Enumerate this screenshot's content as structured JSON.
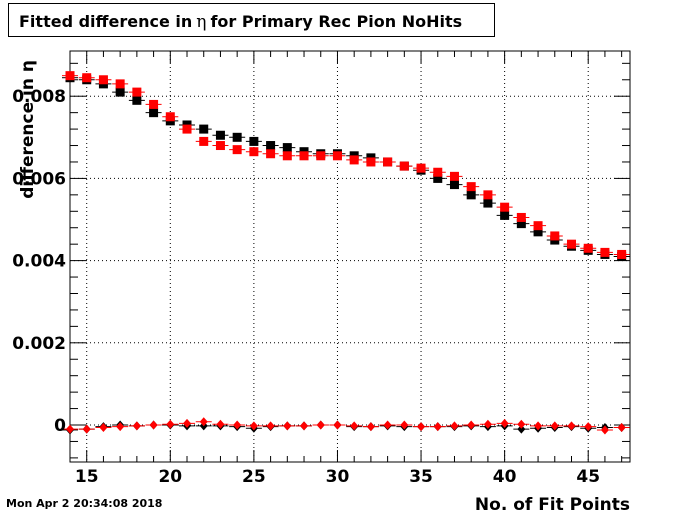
{
  "title": {
    "prefix": "Fitted difference in",
    "symbol": "η",
    "suffix": "for Primary Rec Pion NoHits"
  },
  "timestamp": "Mon Apr  2 20:34:08 2018",
  "chart_data": {
    "type": "scatter",
    "xlabel": "No. of Fit Points",
    "ylabel": "difference in η",
    "xlim": [
      14,
      47.5
    ],
    "ylim": [
      -0.0009,
      0.0091
    ],
    "x_ticks": [
      15,
      20,
      25,
      30,
      35,
      40,
      45
    ],
    "y_ticks": [
      0,
      0.002,
      0.004,
      0.006,
      0.008
    ],
    "y_tick_labels": [
      "0",
      "0.002",
      "0.004",
      "0.006",
      "0.008"
    ],
    "grid": true,
    "colors": {
      "series_black": "#000000",
      "series_red": "#ff0000",
      "axis": "#000000",
      "grid": "#000000"
    },
    "series": [
      {
        "marker": "square",
        "color": "#000000",
        "x": [
          14,
          15,
          16,
          17,
          18,
          19,
          20,
          21,
          22,
          23,
          24,
          25,
          26,
          27,
          28,
          29,
          30,
          31,
          32,
          33,
          34,
          35,
          36,
          37,
          38,
          39,
          40,
          41,
          42,
          43,
          44,
          45,
          46,
          47
        ],
        "y": [
          0.00845,
          0.0084,
          0.0083,
          0.0081,
          0.0079,
          0.0076,
          0.0074,
          0.0073,
          0.0072,
          0.00705,
          0.007,
          0.0069,
          0.0068,
          0.00675,
          0.00665,
          0.0066,
          0.0066,
          0.00655,
          0.0065,
          0.0064,
          0.0063,
          0.0062,
          0.006,
          0.00585,
          0.0056,
          0.0054,
          0.0051,
          0.0049,
          0.0047,
          0.0045,
          0.00435,
          0.00425,
          0.00415,
          0.0041
        ],
        "yerr": [
          6e-05,
          6e-05,
          6e-05,
          6e-05,
          6e-05,
          6e-05,
          6e-05,
          6e-05,
          6e-05,
          6e-05,
          6e-05,
          6e-05,
          6e-05,
          6e-05,
          6e-05,
          6e-05,
          6e-05,
          6e-05,
          6e-05,
          6e-05,
          6e-05,
          6e-05,
          6e-05,
          6e-05,
          6e-05,
          6e-05,
          6e-05,
          6e-05,
          6e-05,
          6e-05,
          6e-05,
          6e-05,
          6e-05,
          6e-05
        ]
      },
      {
        "marker": "square",
        "color": "#ff0000",
        "x": [
          14,
          15,
          16,
          17,
          18,
          19,
          20,
          21,
          22,
          23,
          24,
          25,
          26,
          27,
          28,
          29,
          30,
          31,
          32,
          33,
          34,
          35,
          36,
          37,
          38,
          39,
          40,
          41,
          42,
          43,
          44,
          45,
          46,
          47
        ],
        "y": [
          0.0085,
          0.00845,
          0.0084,
          0.0083,
          0.0081,
          0.0078,
          0.0075,
          0.0072,
          0.0069,
          0.0068,
          0.0067,
          0.00665,
          0.0066,
          0.00655,
          0.00655,
          0.00655,
          0.00655,
          0.00645,
          0.0064,
          0.0064,
          0.0063,
          0.00625,
          0.00615,
          0.00605,
          0.0058,
          0.0056,
          0.0053,
          0.00505,
          0.00485,
          0.0046,
          0.0044,
          0.0043,
          0.0042,
          0.00415
        ],
        "yerr": [
          6e-05,
          6e-05,
          6e-05,
          6e-05,
          6e-05,
          6e-05,
          6e-05,
          6e-05,
          6e-05,
          6e-05,
          6e-05,
          6e-05,
          6e-05,
          6e-05,
          6e-05,
          6e-05,
          6e-05,
          6e-05,
          6e-05,
          6e-05,
          6e-05,
          6e-05,
          6e-05,
          6e-05,
          6e-05,
          6e-05,
          6e-05,
          6e-05,
          6e-05,
          6e-05,
          6e-05,
          6e-05,
          6e-05,
          6e-05
        ]
      },
      {
        "marker": "diamond",
        "color": "#000000",
        "x": [
          14,
          15,
          16,
          17,
          18,
          19,
          20,
          21,
          22,
          23,
          24,
          25,
          26,
          27,
          28,
          29,
          30,
          31,
          32,
          33,
          34,
          35,
          36,
          37,
          38,
          39,
          40,
          41,
          42,
          43,
          44,
          45,
          46,
          47
        ],
        "y": [
          -0.00012,
          -0.0001,
          -4e-05,
          0.0,
          -2e-05,
          0.0,
          0.0,
          -2e-05,
          -2e-05,
          -2e-05,
          -4e-05,
          -8e-05,
          -4e-05,
          -2e-05,
          -2e-05,
          0.0,
          0.0,
          -4e-05,
          -4e-05,
          -2e-05,
          -4e-05,
          -4e-05,
          -4e-05,
          -4e-05,
          -2e-05,
          -4e-05,
          -2e-05,
          -0.0001,
          -8e-05,
          -6e-05,
          -4e-05,
          -8e-05,
          -6e-05,
          -6e-05
        ],
        "yerr": [
          4e-05,
          4e-05,
          4e-05,
          4e-05,
          4e-05,
          4e-05,
          4e-05,
          4e-05,
          4e-05,
          4e-05,
          4e-05,
          4e-05,
          4e-05,
          4e-05,
          4e-05,
          4e-05,
          4e-05,
          4e-05,
          4e-05,
          4e-05,
          4e-05,
          4e-05,
          4e-05,
          4e-05,
          4e-05,
          4e-05,
          4e-05,
          4e-05,
          4e-05,
          4e-05,
          4e-05,
          4e-05,
          4e-05,
          4e-05
        ]
      },
      {
        "marker": "diamond",
        "color": "#ff0000",
        "x": [
          14,
          15,
          16,
          17,
          18,
          19,
          20,
          21,
          22,
          23,
          24,
          25,
          26,
          27,
          28,
          29,
          30,
          31,
          32,
          33,
          34,
          35,
          36,
          37,
          38,
          39,
          40,
          41,
          42,
          43,
          44,
          45,
          46,
          47
        ],
        "y": [
          -0.0001,
          -0.0001,
          -6e-05,
          -4e-05,
          -2e-05,
          0.0,
          2e-05,
          4e-05,
          8e-05,
          2e-05,
          0.0,
          -2e-05,
          -2e-05,
          -2e-05,
          -2e-05,
          0.0,
          0.0,
          -2e-05,
          -4e-05,
          0.0,
          0.0,
          -4e-05,
          -4e-05,
          -2e-05,
          0.0,
          2e-05,
          4e-05,
          2e-05,
          -2e-05,
          -2e-05,
          -2e-05,
          -4e-05,
          -0.00012,
          -6e-05
        ],
        "yerr": [
          4e-05,
          4e-05,
          4e-05,
          4e-05,
          4e-05,
          4e-05,
          4e-05,
          4e-05,
          4e-05,
          4e-05,
          4e-05,
          4e-05,
          4e-05,
          4e-05,
          4e-05,
          4e-05,
          4e-05,
          4e-05,
          4e-05,
          4e-05,
          4e-05,
          4e-05,
          4e-05,
          4e-05,
          4e-05,
          4e-05,
          4e-05,
          4e-05,
          4e-05,
          4e-05,
          4e-05,
          4e-05,
          4e-05,
          4e-05
        ]
      }
    ]
  }
}
